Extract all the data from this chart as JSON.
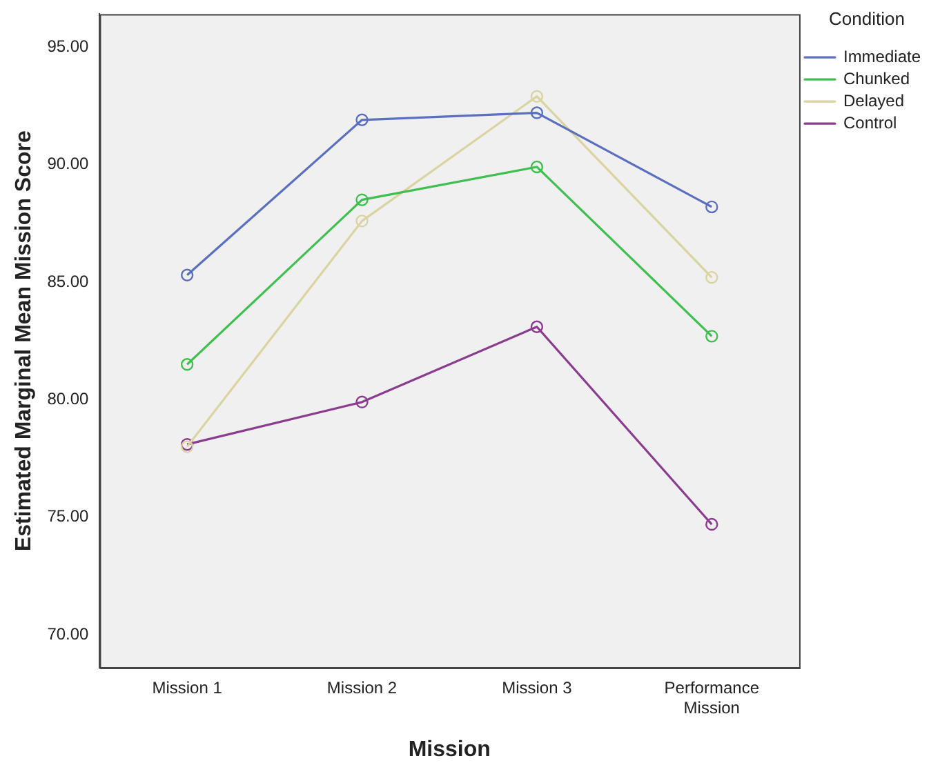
{
  "chart_data": {
    "type": "line",
    "xlabel": "Mission",
    "ylabel": "Estimated Marginal Mean Mission Score",
    "legend_title": "Condition",
    "categories": [
      "Mission 1",
      "Mission 2",
      "Mission 3",
      "Performance Mission"
    ],
    "ylim": [
      68.6,
      96.4
    ],
    "yticks": [
      {
        "value": 70,
        "label": "70.00"
      },
      {
        "value": 75,
        "label": "75.00"
      },
      {
        "value": 80,
        "label": "80.00"
      },
      {
        "value": 85,
        "label": "85.00"
      },
      {
        "value": 90,
        "label": "90.00"
      },
      {
        "value": 95,
        "label": "95.00"
      }
    ],
    "series": [
      {
        "name": "Immediate",
        "color": "#5b6fbf",
        "values": [
          85.3,
          91.9,
          92.2,
          88.2
        ]
      },
      {
        "name": "Chunked",
        "color": "#3fbf4f",
        "values": [
          81.5,
          88.5,
          89.9,
          82.7
        ]
      },
      {
        "name": "Delayed",
        "color": "#d9d4a0",
        "values": [
          78.0,
          87.6,
          92.9,
          85.2
        ]
      },
      {
        "name": "Control",
        "color": "#8a3c8f",
        "values": [
          78.1,
          79.9,
          83.1,
          74.7
        ]
      }
    ],
    "grid": false,
    "legend": "top right",
    "marker": "circle",
    "line_style": "solid"
  }
}
